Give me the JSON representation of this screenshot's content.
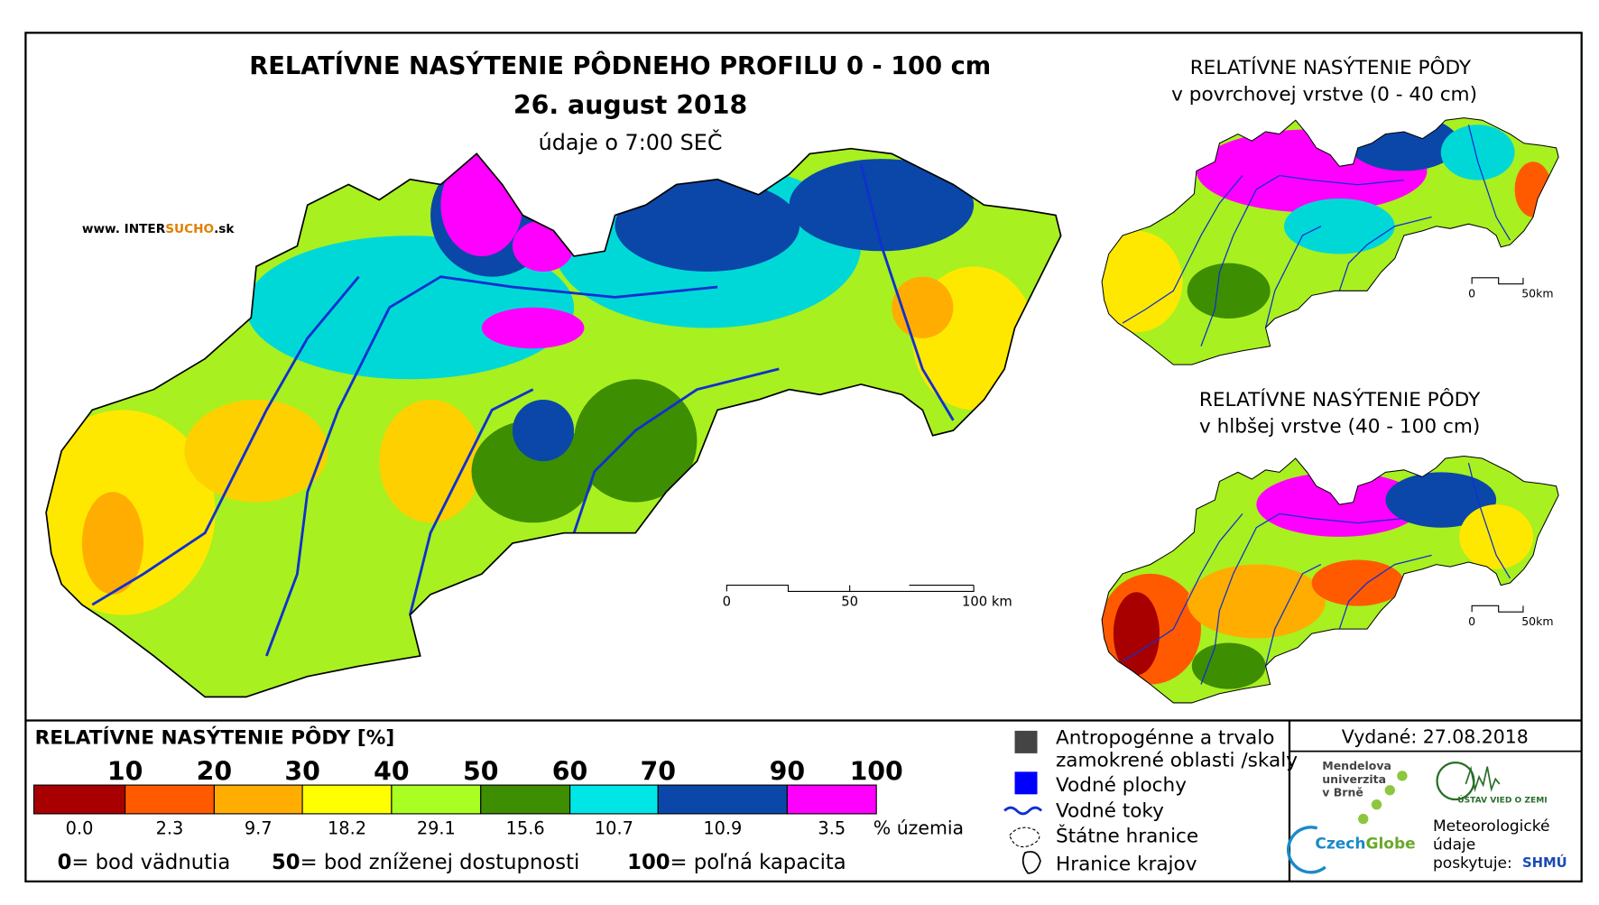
{
  "main_map": {
    "title": "RELATÍVNE NASÝTENIE PÔDNEHO PROFILU 0 - 100 cm",
    "date": "26. august 2018",
    "time_note": "údaje o 7:00 SEČ",
    "website": [
      "www. INTER",
      "SUCHO",
      ".sk"
    ],
    "scale_labels": [
      "0",
      "50",
      "100 km"
    ]
  },
  "inset_top": {
    "title_line1": "RELATÍVNE NASÝTENIE PÔDY",
    "title_line2": "v povrchovej vrstve (0 - 40 cm)",
    "scale_labels": [
      "0",
      "50km"
    ]
  },
  "inset_bottom": {
    "title_line1": "RELATÍVNE NASÝTENIE PÔDY",
    "title_line2": "v hlbšej vrstve (40 - 100 cm)",
    "scale_labels": [
      "0",
      "50km"
    ]
  },
  "legend": {
    "title": "RELATÍVNE NASÝTENIE PÔDY [%]",
    "class_bounds": [
      10,
      20,
      30,
      40,
      50,
      60,
      70,
      90,
      100
    ],
    "colors": [
      "#a80000",
      "#ff5a00",
      "#ffad00",
      "#ffff00",
      "#aaff22",
      "#3d8e00",
      "#00e6e6",
      "#0a47a8",
      "#ff00ff"
    ],
    "shares": [
      "0.0",
      "2.3",
      "9.7",
      "18.2",
      "29.1",
      "15.6",
      "10.7",
      "10.9",
      "3.5"
    ],
    "shares_unit": "% územia",
    "notes": [
      {
        "value": "0",
        "text": "= bod vädnutia"
      },
      {
        "value": "50",
        "text": "= bod zníženej dostupnosti"
      },
      {
        "value": "100",
        "text": "= poľná kapacita"
      }
    ],
    "symbols": [
      "Antropogénne a trvalo",
      "zamokrené oblasti /skaly",
      "Vodné plochy",
      "Vodné toky",
      "Štátne hranice",
      "Hranice krajov"
    ]
  },
  "issued": "Vydané: 27.08.2018",
  "logos": {
    "mendel": [
      "Mendelova",
      "univerzita",
      "v Brně"
    ],
    "czechglobe": [
      "Czech",
      "Globe"
    ],
    "ustav": "ÚSTAV VIED O ZEMI",
    "shmu_text": [
      "Meteorologické",
      "údaje",
      "poskytuje:"
    ],
    "shmu": "SHMÚ"
  }
}
